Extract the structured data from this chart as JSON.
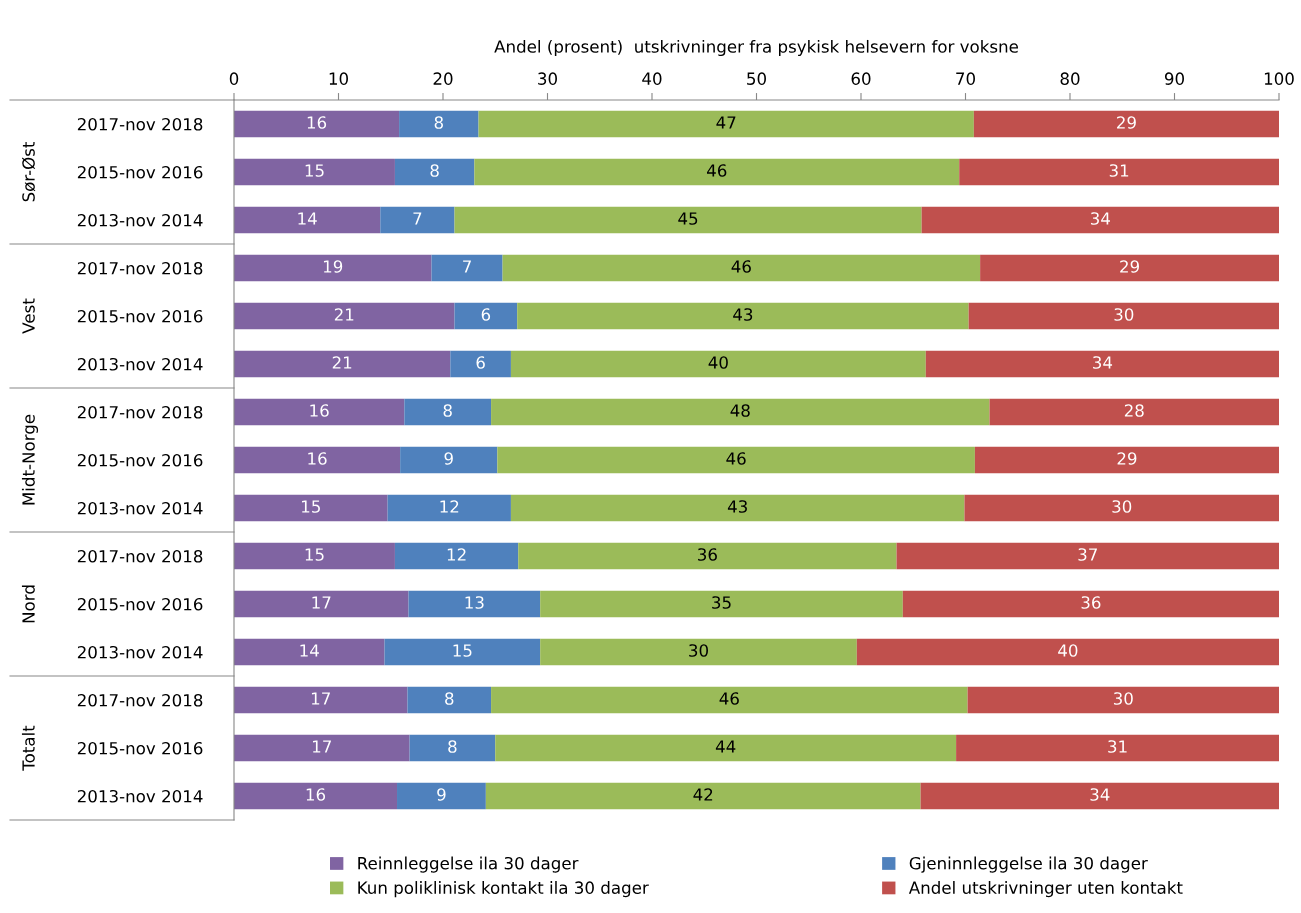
{
  "chart_data": {
    "type": "bar",
    "orientation": "horizontal",
    "stacked": true,
    "xlabel": "Andel (prosent)  utskrivninger fra psykisk helsevern for voksne",
    "categories": [
      "2017-nov 2018",
      "2015-nov 2016",
      "2013-nov 2014",
      "2017-nov 2018",
      "2015-nov 2016",
      "2013-nov 2014",
      "2017-nov 2018",
      "2015-nov 2016",
      "2013-nov 2014",
      "2017-nov 2018",
      "2015-nov 2016",
      "2013-nov 2014",
      "2017-nov 2018",
      "2015-nov 2016",
      "2013-nov 2014"
    ],
    "annotations": [
      "Sør-Øst",
      "Vest",
      "Midt-Norge",
      "Nord",
      "Totalt"
    ],
    "series": [
      {
        "name": "Reinnleggelse ila 30 dager",
        "color": "#8064a2",
        "values": [
          15.8,
          15.4,
          14.0,
          18.9,
          21.1,
          20.7,
          16.3,
          15.9,
          14.7,
          15.4,
          16.7,
          14.4,
          16.6,
          16.8,
          15.6
        ],
        "value_labels": [
          "16",
          "15",
          "14",
          "19",
          "21",
          "21",
          "16",
          "16",
          "15",
          "15",
          "17",
          "14",
          "17",
          "17",
          "16"
        ]
      },
      {
        "name": "Gjeninnleggelse ila 30 dager",
        "color": "#4f81bd",
        "values": [
          7.6,
          7.6,
          7.1,
          6.8,
          6.0,
          5.8,
          8.3,
          9.3,
          11.8,
          11.8,
          12.6,
          14.9,
          8.0,
          8.2,
          8.5
        ],
        "value_labels": [
          "8",
          "8",
          "7",
          "7",
          "6",
          "6",
          "8",
          "9",
          "12",
          "12",
          "13",
          "15",
          "8",
          "8",
          "9"
        ]
      },
      {
        "name": "Kun poliklinisk kontakt ila 30 dager",
        "color": "#9bbb59",
        "values": [
          47.4,
          46.4,
          44.7,
          45.7,
          43.2,
          39.7,
          47.7,
          45.7,
          43.4,
          36.2,
          34.7,
          30.3,
          45.6,
          44.1,
          41.6
        ],
        "value_labels": [
          "47",
          "46",
          "45",
          "46",
          "43",
          "40",
          "48",
          "46",
          "43",
          "36",
          "35",
          "30",
          "46",
          "44",
          "42"
        ]
      },
      {
        "name": "Andel utskrivninger uten kontakt",
        "color": "#c0504d",
        "values": [
          29.2,
          30.6,
          34.2,
          28.6,
          29.7,
          33.8,
          27.7,
          29.1,
          30.1,
          36.6,
          36.0,
          40.4,
          29.8,
          30.9,
          34.3
        ],
        "value_labels": [
          "29",
          "31",
          "34",
          "29",
          "30",
          "34",
          "28",
          "29",
          "30",
          "37",
          "36",
          "40",
          "30",
          "31",
          "34"
        ]
      }
    ],
    "xlim": [
      0,
      100
    ],
    "xticks": [
      0,
      10,
      20,
      30,
      40,
      50,
      60,
      70,
      80,
      90,
      100
    ],
    "grid": false,
    "legend": "bottom"
  }
}
